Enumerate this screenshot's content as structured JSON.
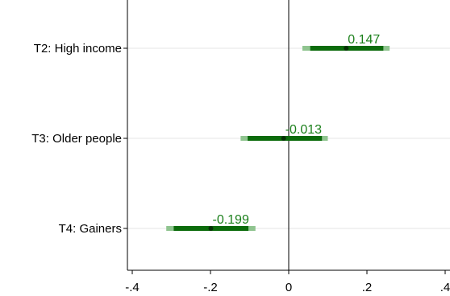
{
  "chart_data": {
    "type": "coefficient",
    "categories": [
      "T2: High income",
      "T3: Older people",
      "T4: Gainers"
    ],
    "points": [
      {
        "label": "T2: High income",
        "estimate": 0.147,
        "estimate_label": "0.147",
        "ci_inner": [
          0.055,
          0.242
        ],
        "ci_outer": [
          0.035,
          0.258
        ]
      },
      {
        "label": "T3: Older people",
        "estimate": -0.013,
        "estimate_label": "-0.013",
        "ci_inner": [
          -0.105,
          0.085
        ],
        "ci_outer": [
          -0.123,
          0.1
        ]
      },
      {
        "label": "T4: Gainers",
        "estimate": -0.199,
        "estimate_label": "-0.199",
        "ci_inner": [
          -0.294,
          -0.103
        ],
        "ci_outer": [
          -0.313,
          -0.085
        ]
      }
    ],
    "xticks": [
      -0.4,
      -0.2,
      0,
      0.2,
      0.4
    ],
    "xtick_labels": [
      "-.4",
      "-.2",
      "0",
      ".2",
      ".4"
    ],
    "xlim": [
      -0.4,
      0.4
    ],
    "reference_line": 0,
    "grid": "horizontal",
    "colors": {
      "inner": "#0b6b0b",
      "outer": "#8fc48f",
      "label": "#1a7f1a",
      "grid": "#e6e6e6",
      "axis": "#000000"
    }
  }
}
